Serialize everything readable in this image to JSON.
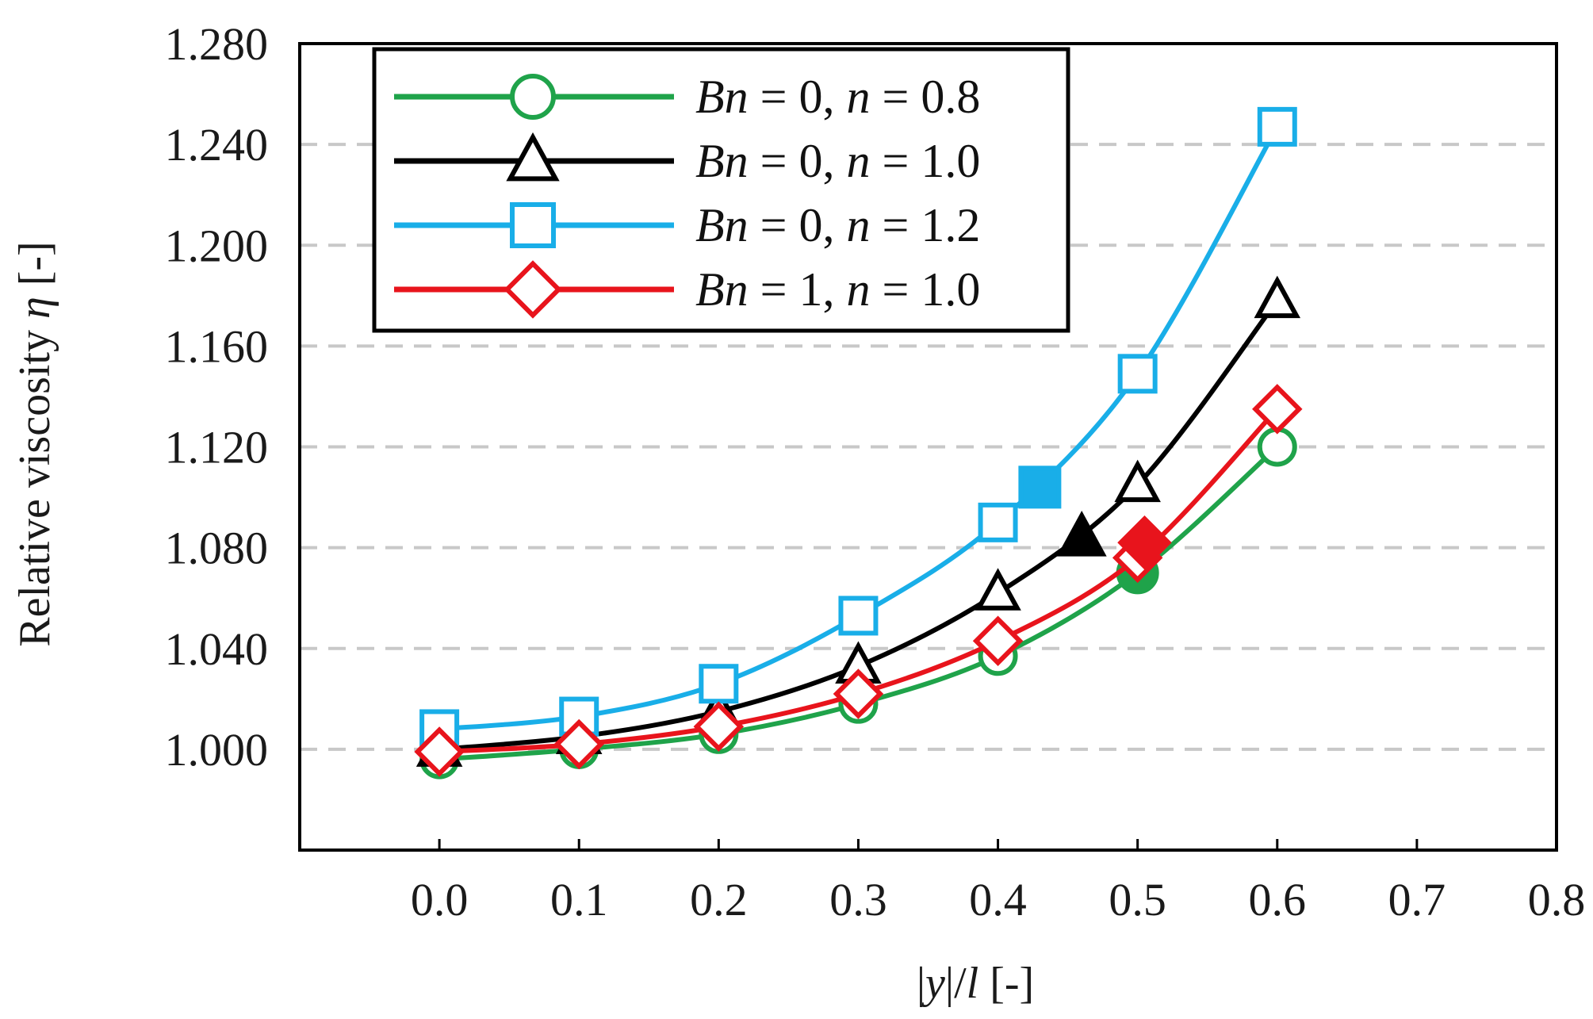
{
  "chart_data": {
    "type": "line",
    "title": "",
    "xlabel": "|y|/l [-]",
    "xlabel_parts": {
      "bar1": "|",
      "y": "y",
      "bar2": "|/",
      "l": "l",
      "unit": " [-]"
    },
    "ylabel": "Relative viscosity η [-]",
    "ylabel_parts": {
      "text": "Relative viscosity ",
      "eta": "η",
      "unit": " [-]"
    },
    "xlim": [
      -0.1,
      0.8
    ],
    "ylim": [
      0.96,
      1.28
    ],
    "xticks": [
      "0.0",
      "0.1",
      "0.2",
      "0.3",
      "0.4",
      "0.5",
      "0.6",
      "0.7",
      "0.8"
    ],
    "yticks": [
      "1.000",
      "1.040",
      "1.080",
      "1.120",
      "1.160",
      "1.200",
      "1.240",
      "1.280"
    ],
    "grid": "horizontal dashed",
    "legend_position": "top-left",
    "series": [
      {
        "name": "Bn = 0, n = 0.8",
        "legend": {
          "bn": "Bn",
          "eq1": " = 0, ",
          "n": "n",
          "eq2": " = 0.8"
        },
        "color": "#1fa34a",
        "marker": "circle",
        "x": [
          0.0,
          0.1,
          0.2,
          0.3,
          0.4,
          0.5,
          0.6
        ],
        "y": [
          0.996,
          1.0,
          1.006,
          1.018,
          1.037,
          1.07,
          1.12
        ],
        "filled_point": {
          "x": 0.5,
          "y": 1.07
        }
      },
      {
        "name": "Bn = 0, n = 1.0",
        "legend": {
          "bn": "Bn",
          "eq1": " = 0, ",
          "n": "n",
          "eq2": " = 1.0"
        },
        "color": "#000000",
        "marker": "triangle",
        "x": [
          0.0,
          0.1,
          0.2,
          0.3,
          0.4,
          0.5,
          0.6
        ],
        "y": [
          1.0,
          1.005,
          1.015,
          1.033,
          1.062,
          1.105,
          1.178
        ],
        "filled_point": {
          "x": 0.46,
          "y": 1.084
        }
      },
      {
        "name": "Bn = 0, n = 1.2",
        "legend": {
          "bn": "Bn",
          "eq1": " = 0, ",
          "n": "n",
          "eq2": " = 1.2"
        },
        "color": "#19aee8",
        "marker": "square",
        "x": [
          0.0,
          0.1,
          0.2,
          0.3,
          0.4,
          0.5,
          0.6
        ],
        "y": [
          1.008,
          1.013,
          1.026,
          1.053,
          1.09,
          1.149,
          1.247
        ],
        "filled_point": {
          "x": 0.43,
          "y": 1.104
        }
      },
      {
        "name": "Bn = 1, n = 1.0",
        "legend": {
          "bn": "Bn",
          "eq1": " = 1, ",
          "n": "n",
          "eq2": " = 1.0"
        },
        "color": "#e8141c",
        "marker": "diamond",
        "x": [
          0.0,
          0.1,
          0.2,
          0.3,
          0.4,
          0.5,
          0.6
        ],
        "y": [
          0.999,
          1.002,
          1.009,
          1.022,
          1.043,
          1.076,
          1.135
        ],
        "filled_point": {
          "x": 0.505,
          "y": 1.082
        }
      }
    ]
  }
}
